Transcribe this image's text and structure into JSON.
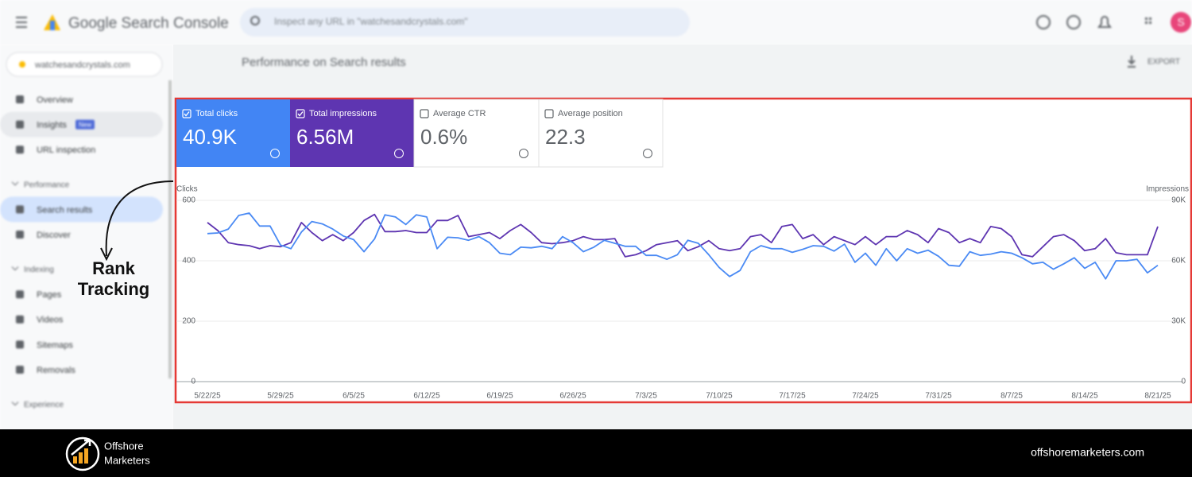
{
  "app": {
    "title": "Google Search Console",
    "search_placeholder": "Inspect any URL in \"watchesandcrystals.com\"",
    "property": "watchesandcrystals.com",
    "avatar_letter": "S"
  },
  "sidebar": {
    "top": [
      "Overview",
      "Insights",
      "URL inspection"
    ],
    "badge": "New",
    "sections": [
      {
        "title": "Performance",
        "items": [
          "Search results",
          "Discover"
        ]
      },
      {
        "title": "Indexing",
        "items": [
          "Pages",
          "Videos",
          "Sitemaps",
          "Removals"
        ]
      },
      {
        "title": "Experience"
      }
    ]
  },
  "page": {
    "title": "Performance on Search results",
    "export": "EXPORT"
  },
  "metrics": [
    {
      "label": "Total clicks",
      "value": "40.9K",
      "color": "#4285f4"
    },
    {
      "label": "Total impressions",
      "value": "6.56M",
      "color": "#5e35b1"
    },
    {
      "label": "Average CTR",
      "value": "0.6%"
    },
    {
      "label": "Average position",
      "value": "22.3"
    }
  ],
  "chart_data": {
    "type": "line",
    "categories": [
      "5/22/25",
      null,
      null,
      null,
      null,
      null,
      null,
      "5/29/25",
      null,
      null,
      null,
      null,
      null,
      null,
      "6/5/25",
      null,
      null,
      null,
      null,
      null,
      null,
      "6/12/25",
      null,
      null,
      null,
      null,
      null,
      null,
      "6/19/25",
      null,
      null,
      null,
      null,
      null,
      null,
      "6/26/25",
      null,
      null,
      null,
      null,
      null,
      null,
      "7/3/25",
      null,
      null,
      null,
      null,
      null,
      null,
      "7/10/25",
      null,
      null,
      null,
      null,
      null,
      null,
      "7/17/25",
      null,
      null,
      null,
      null,
      null,
      null,
      "7/24/25",
      null,
      null,
      null,
      null,
      null,
      null,
      "7/31/25",
      null,
      null,
      null,
      null,
      null,
      null,
      "8/7/25",
      null,
      null,
      null,
      null,
      null,
      null,
      "8/14/25",
      null,
      null,
      null,
      null,
      null,
      null,
      "8/21/25"
    ],
    "ylim": [
      0,
      600
    ],
    "yticks": [
      0,
      200,
      400,
      600
    ],
    "y2lim": [
      0,
      90000
    ],
    "y2ticks": [
      0,
      {
        "value": 30000,
        "label": "30K"
      },
      {
        "value": 60000,
        "label": "60K"
      },
      {
        "value": 90000,
        "label": "90K"
      }
    ],
    "grid": true,
    "series": [
      {
        "name": "Clicks",
        "color": "#4a8af4",
        "values": [
          490,
          492,
          505,
          550,
          558,
          515,
          515,
          452,
          440,
          495,
          530,
          522,
          505,
          482,
          470,
          430,
          472,
          552,
          545,
          520,
          552,
          545,
          440,
          478,
          476,
          468,
          480,
          460,
          425,
          420,
          445,
          443,
          448,
          440,
          480,
          460,
          430,
          445,
          468,
          458,
          448,
          448,
          418,
          418,
          405,
          420,
          468,
          458,
          420,
          378,
          348,
          368,
          430,
          450,
          440,
          440,
          428,
          438,
          450,
          448,
          432,
          455,
          395,
          425,
          385,
          440,
          400,
          440,
          425,
          435,
          415,
          385,
          382,
          430,
          418,
          422,
          430,
          425,
          410,
          390,
          395,
          372,
          390,
          410,
          375,
          395,
          340,
          400,
          400,
          405,
          360,
          385
        ]
      },
      {
        "name": "Impressions",
        "color": "#5e35b1",
        "axis": "y2",
        "values": [
          79000,
          75000,
          69000,
          68000,
          67500,
          66000,
          67500,
          67000,
          69000,
          79000,
          74000,
          70000,
          73000,
          70000,
          74000,
          80000,
          83000,
          74500,
          74500,
          75000,
          74000,
          74000,
          80000,
          80000,
          82500,
          72000,
          73000,
          74000,
          71000,
          75000,
          78000,
          74000,
          69000,
          68500,
          69000,
          70000,
          72000,
          70500,
          70500,
          71000,
          62000,
          63000,
          65000,
          68000,
          69000,
          70000,
          65000,
          67000,
          70000,
          66000,
          65000,
          66000,
          72000,
          73000,
          69000,
          77000,
          78000,
          71000,
          73000,
          68000,
          72000,
          70000,
          68000,
          72000,
          68000,
          72000,
          72000,
          75000,
          73000,
          69000,
          76000,
          74000,
          69000,
          71000,
          69000,
          77000,
          76000,
          72000,
          63000,
          62000,
          67000,
          72000,
          73000,
          70000,
          65000,
          66000,
          71000,
          64000,
          63000,
          63000,
          63000,
          77000
        ]
      }
    ]
  },
  "annotation": {
    "lines": [
      "Rank",
      "Tracking"
    ]
  },
  "footer": {
    "brand_lines": [
      "Offshore",
      "Marketers"
    ],
    "website": "offshoremarketers.com"
  }
}
